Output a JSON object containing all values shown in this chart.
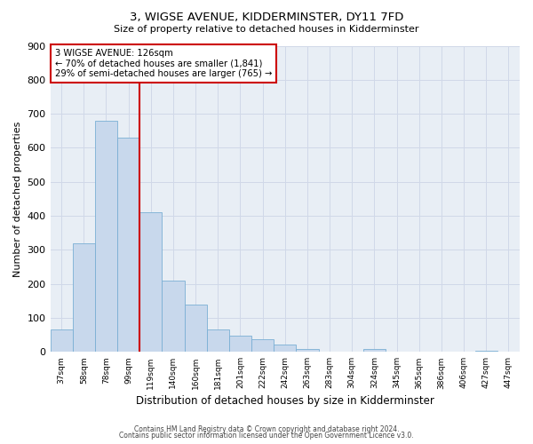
{
  "title": "3, WIGSE AVENUE, KIDDERMINSTER, DY11 7FD",
  "subtitle": "Size of property relative to detached houses in Kidderminster",
  "xlabel": "Distribution of detached houses by size in Kidderminster",
  "ylabel": "Number of detached properties",
  "categories": [
    "37sqm",
    "58sqm",
    "78sqm",
    "99sqm",
    "119sqm",
    "140sqm",
    "160sqm",
    "181sqm",
    "201sqm",
    "222sqm",
    "242sqm",
    "263sqm",
    "283sqm",
    "304sqm",
    "324sqm",
    "345sqm",
    "365sqm",
    "386sqm",
    "406sqm",
    "427sqm",
    "447sqm"
  ],
  "values": [
    65,
    320,
    680,
    630,
    410,
    210,
    140,
    65,
    48,
    37,
    22,
    8,
    0,
    0,
    8,
    0,
    0,
    0,
    0,
    4,
    0
  ],
  "bar_color": "#c8d8ec",
  "bar_edge_color": "#7aafd4",
  "vline_x_pos": 3.5,
  "vline_color": "#cc0000",
  "annotation_box_color": "#ffffff",
  "annotation_box_edge_color": "#cc0000",
  "annotation_line1": "3 WIGSE AVENUE: 126sqm",
  "annotation_line2": "← 70% of detached houses are smaller (1,841)",
  "annotation_line3": "29% of semi-detached houses are larger (765) →",
  "ylim": [
    0,
    900
  ],
  "yticks": [
    0,
    100,
    200,
    300,
    400,
    500,
    600,
    700,
    800,
    900
  ],
  "grid_color": "#d0d8e8",
  "plot_bg_color": "#e8eef5",
  "fig_bg_color": "#ffffff",
  "footer_line1": "Contains HM Land Registry data © Crown copyright and database right 2024.",
  "footer_line2": "Contains public sector information licensed under the Open Government Licence v3.0."
}
